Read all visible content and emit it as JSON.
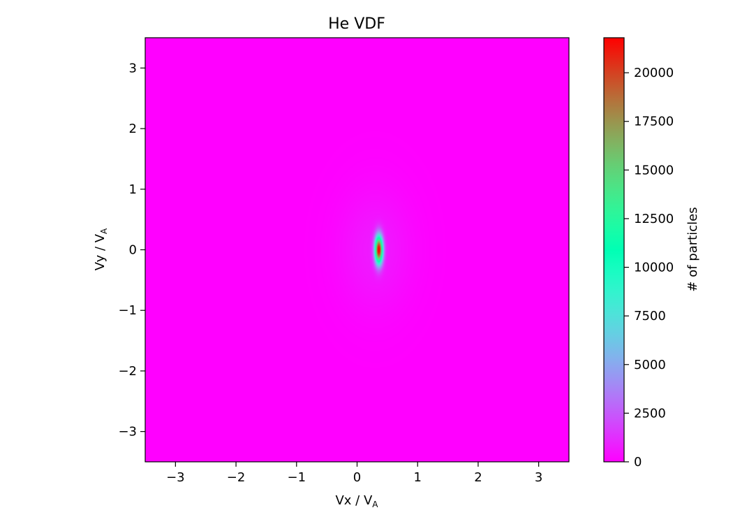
{
  "chart_data": {
    "type": "heatmap",
    "title": "He VDF",
    "xlabel": {
      "base": "Vx / V",
      "sub": "A"
    },
    "ylabel": {
      "base": "Vy / V",
      "sub": "A"
    },
    "xlim": [
      -3.5,
      3.5
    ],
    "ylim": [
      -3.5,
      3.5
    ],
    "xticks": [
      -3,
      -2,
      -1,
      0,
      1,
      2,
      3
    ],
    "xtick_labels": [
      "−3",
      "−2",
      "−1",
      "0",
      "1",
      "2",
      "3"
    ],
    "yticks": [
      -3,
      -2,
      -1,
      0,
      1,
      2,
      3
    ],
    "ytick_labels": [
      "−3",
      "−2",
      "−1",
      "0",
      "1",
      "2",
      "3"
    ],
    "colormap": "rainbow",
    "grid": false,
    "colorbar": {
      "label": "# of particles",
      "range": [
        0,
        21800
      ],
      "ticks": [
        0,
        2500,
        5000,
        7500,
        10000,
        12500,
        15000,
        17500,
        20000
      ],
      "tick_labels": [
        "0",
        "2500",
        "5000",
        "7500",
        "10000",
        "12500",
        "15000",
        "17500",
        "20000"
      ]
    },
    "distribution": {
      "core": {
        "center": [
          0.36,
          0.0
        ],
        "sigma": [
          0.045,
          0.16
        ],
        "peak": 21800
      },
      "halo": {
        "center": [
          0.3,
          0.0
        ],
        "sigma": [
          0.42,
          0.7
        ],
        "peak": 700
      }
    }
  }
}
